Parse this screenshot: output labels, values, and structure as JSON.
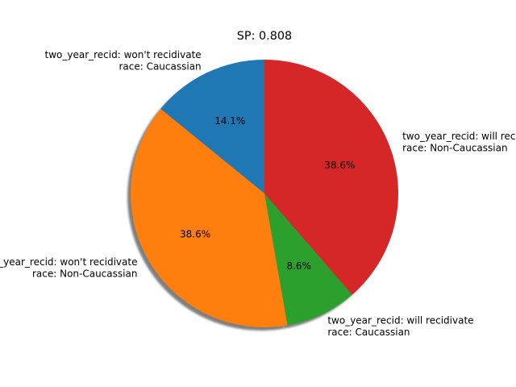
{
  "chart_data": {
    "type": "pie",
    "title": "SP: 0.808",
    "start_angle_deg": 90,
    "direction": "counterclockwise",
    "shadow": true,
    "slices": [
      {
        "label_lines": [
          "two_year_recid: won't recidivate",
          "race: Caucassian"
        ],
        "value": 14.1,
        "pct_label": "14.1%",
        "color": "#1f77b4"
      },
      {
        "label_lines": [
          "two_year_recid: won't recidivate",
          "race: Non-Caucassian"
        ],
        "value": 38.6,
        "pct_label": "38.6%",
        "color": "#ff7f0e"
      },
      {
        "label_lines": [
          "two_year_recid: will recidivate",
          "race: Caucassian"
        ],
        "value": 8.6,
        "pct_label": "8.6%",
        "color": "#2ca02c"
      },
      {
        "label_lines": [
          "two_year_recid: will recidivate",
          "race: Non-Caucassian"
        ],
        "value": 38.6,
        "pct_label": "38.6%",
        "color": "#d62728"
      }
    ]
  }
}
